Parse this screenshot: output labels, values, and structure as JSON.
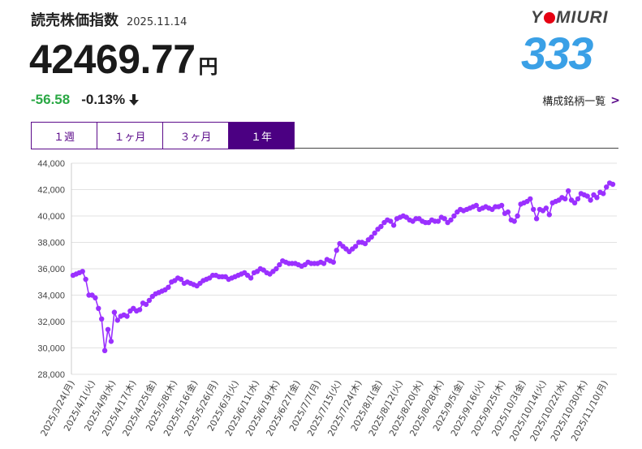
{
  "header": {
    "title": "読売株価指数",
    "date": "2025.11.14",
    "price": "42469.77",
    "unit": "円",
    "change": "-56.58",
    "change_pct": "-0.13%",
    "direction": "down"
  },
  "logo": {
    "brand_left": "Y",
    "brand_right": "MIURI",
    "number": "333"
  },
  "links": {
    "constituents": "構成銘柄一覧"
  },
  "tabs": [
    {
      "label": "１週",
      "active": false
    },
    {
      "label": "１ヶ月",
      "active": false
    },
    {
      "label": "３ヶ月",
      "active": false
    },
    {
      "label": "１年",
      "active": true
    }
  ],
  "colors": {
    "line": "#9b30ff",
    "accent": "#4b0082",
    "up": "#2aa844",
    "logo_red": "#e60012",
    "logo_blue": "#3aa0e6"
  },
  "chart_data": {
    "type": "line",
    "ylim": [
      28000,
      44000
    ],
    "yticks": [
      "28,000",
      "30,000",
      "32,000",
      "34,000",
      "36,000",
      "38,000",
      "40,000",
      "42,000",
      "44,000"
    ],
    "xtick_labels": [
      "2025/3/24(月)",
      "2025/4/1(火)",
      "2025/4/9(水)",
      "2025/4/17(木)",
      "2025/4/25(金)",
      "2025/5/8(木)",
      "2025/5/16(金)",
      "2025/5/26(月)",
      "2025/6/3(火)",
      "2025/6/11(水)",
      "2025/6/19(木)",
      "2025/6/27(金)",
      "2025/7/7(月)",
      "2025/7/15(火)",
      "2025/7/24(木)",
      "2025/8/1(金)",
      "2025/8/12(火)",
      "2025/8/20(水)",
      "2025/8/28(木)",
      "2025/9/5(金)",
      "2025/9/16(火)",
      "2025/9/25(木)",
      "2025/10/3(金)",
      "2025/10/14(火)",
      "2025/10/22(水)",
      "2025/10/30(木)",
      "2025/11/10(月)"
    ],
    "grid": true,
    "series": [
      {
        "values": [
          35500,
          35600,
          35700,
          35800,
          35200,
          34000,
          34000,
          33800,
          33000,
          32200,
          29800,
          31400,
          30500,
          32700,
          32100,
          32400,
          32500,
          32400,
          32800,
          33000,
          32800,
          32900,
          33400,
          33300,
          33600,
          33900,
          34100,
          34200,
          34300,
          34400,
          34600,
          35000,
          35100,
          35300,
          35200,
          34900,
          35000,
          34900,
          34800,
          34700,
          34900,
          35100,
          35200,
          35300,
          35500,
          35500,
          35400,
          35400,
          35400,
          35200,
          35300,
          35400,
          35500,
          35600,
          35700,
          35500,
          35300,
          35700,
          35800,
          36000,
          35900,
          35700,
          35600,
          35800,
          36000,
          36300,
          36600,
          36500,
          36400,
          36400,
          36400,
          36300,
          36200,
          36300,
          36500,
          36400,
          36400,
          36400,
          36500,
          36400,
          36700,
          36600,
          36500,
          37400,
          37900,
          37700,
          37500,
          37300,
          37500,
          37700,
          38000,
          38000,
          37900,
          38200,
          38400,
          38700,
          39000,
          39200,
          39500,
          39700,
          39600,
          39300,
          39800,
          39900,
          40000,
          39900,
          39700,
          39600,
          39800,
          39800,
          39600,
          39500,
          39500,
          39700,
          39600,
          39600,
          39900,
          39800,
          39500,
          39700,
          40000,
          40300,
          40500,
          40400,
          40500,
          40600,
          40700,
          40800,
          40500,
          40600,
          40700,
          40600,
          40500,
          40700,
          40700,
          40800,
          40200,
          40300,
          39700,
          39600,
          40000,
          40900,
          41000,
          41100,
          41300,
          40500,
          39800,
          40500,
          40400,
          40600,
          40100,
          41000,
          41100,
          41200,
          41400,
          41300,
          41900,
          41200,
          41000,
          41300,
          41700,
          41600,
          41500,
          41200,
          41600,
          41400,
          41800,
          41700,
          42200,
          42500,
          42400
        ]
      }
    ]
  }
}
